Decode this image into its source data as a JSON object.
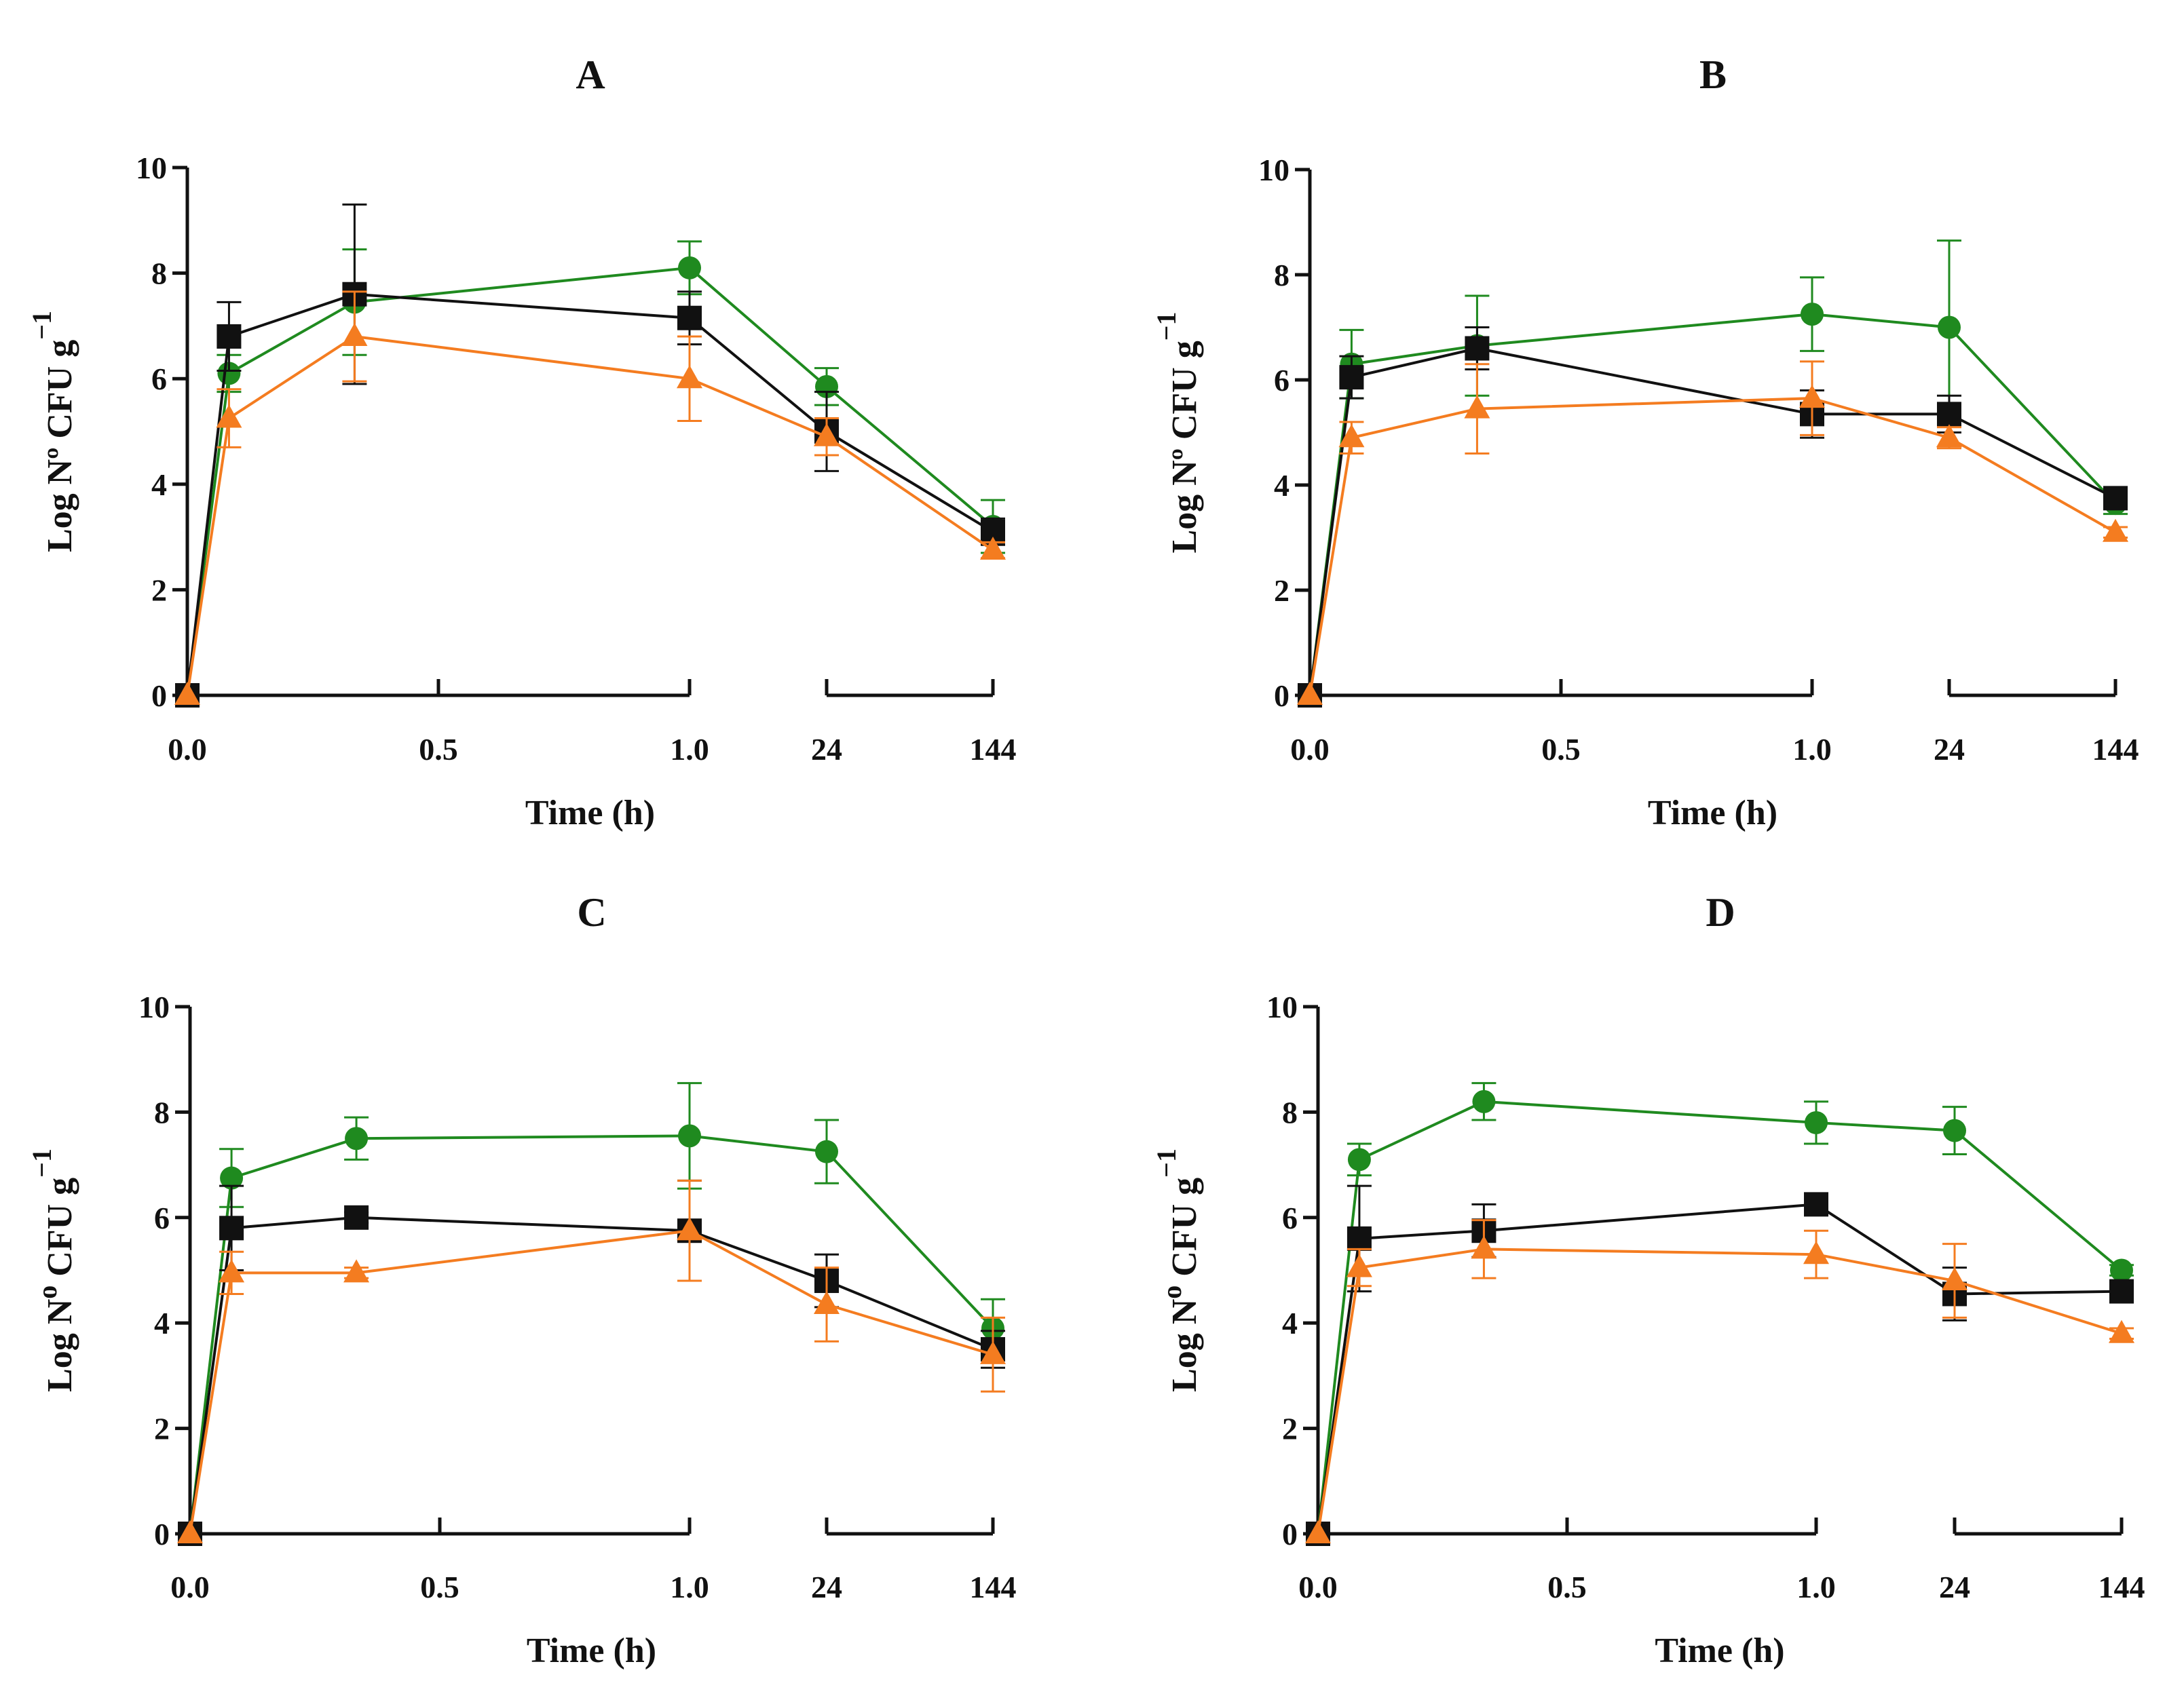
{
  "chart_data": [
    {
      "type": "line",
      "title": "A",
      "xlabel": "Time (h)",
      "ylabel": {
        "main": "Log Nº CFU g",
        "exponent": "−1"
      },
      "ylim": [
        0,
        10
      ],
      "yticks": [
        "0",
        "2",
        "4",
        "6",
        "8",
        "10"
      ],
      "x_segments": [
        {
          "range": [
            0.0,
            1.0
          ],
          "ticks": [
            "0.0",
            "0.5",
            "1.0"
          ]
        },
        {
          "range": [
            24,
            144
          ],
          "ticks": [
            "24",
            "144"
          ]
        }
      ],
      "x": [
        0,
        0.083,
        0.333,
        1.0,
        24,
        144
      ],
      "series": [
        {
          "name": "green circles",
          "marker": "circle",
          "color": "#1f8a1f",
          "values": [
            0,
            6.1,
            7.45,
            8.1,
            5.85,
            3.2
          ],
          "errors": [
            0,
            0.35,
            1.0,
            0.5,
            0.35,
            0.5
          ]
        },
        {
          "name": "black squares",
          "marker": "square",
          "color": "#111111",
          "values": [
            0,
            6.8,
            7.6,
            7.15,
            5.0,
            3.1
          ],
          "errors": [
            0,
            0.65,
            1.7,
            0.5,
            0.75,
            0.25
          ]
        },
        {
          "name": "orange triangles",
          "marker": "triangle",
          "color": "#f47c20",
          "values": [
            0,
            5.25,
            6.8,
            6.0,
            4.9,
            2.75
          ],
          "errors": [
            0,
            0.55,
            0.85,
            0.8,
            0.35,
            0.15
          ]
        }
      ]
    },
    {
      "type": "line",
      "title": "B",
      "xlabel": "Time (h)",
      "ylabel": {
        "main": "Log Nº CFU g",
        "exponent": "−1"
      },
      "ylim": [
        0,
        10
      ],
      "yticks": [
        "0",
        "2",
        "4",
        "6",
        "8",
        "10"
      ],
      "x_segments": [
        {
          "range": [
            0.0,
            1.0
          ],
          "ticks": [
            "0.0",
            "0.5",
            "1.0"
          ]
        },
        {
          "range": [
            24,
            144
          ],
          "ticks": [
            "24",
            "144"
          ]
        }
      ],
      "x": [
        0,
        0.083,
        0.333,
        1.0,
        24,
        144
      ],
      "series": [
        {
          "name": "green circles",
          "marker": "circle",
          "color": "#1f8a1f",
          "values": [
            0,
            6.3,
            6.65,
            7.25,
            7.0,
            3.65
          ],
          "errors": [
            0,
            0.65,
            0.95,
            0.7,
            1.65,
            0.2
          ]
        },
        {
          "name": "black squares",
          "marker": "square",
          "color": "#111111",
          "values": [
            0,
            6.05,
            6.6,
            5.35,
            5.35,
            3.75
          ],
          "errors": [
            0,
            0.4,
            0.4,
            0.45,
            0.35,
            0.1
          ]
        },
        {
          "name": "orange triangles",
          "marker": "triangle",
          "color": "#f47c20",
          "values": [
            0,
            4.9,
            5.45,
            5.65,
            4.9,
            3.1
          ],
          "errors": [
            0,
            0.3,
            0.85,
            0.7,
            0.2,
            0.1
          ]
        }
      ]
    },
    {
      "type": "line",
      "title": "C",
      "xlabel": "Time (h)",
      "ylabel": {
        "main": "Log N",
        "degree": "o",
        "rest": " CFU g",
        "exponent": "−1"
      },
      "ylim": [
        0,
        10
      ],
      "yticks": [
        "0",
        "2",
        "4",
        "6",
        "8",
        "10"
      ],
      "x_segments": [
        {
          "range": [
            0.0,
            1.0
          ],
          "ticks": [
            "0.0",
            "0.5",
            "1.0"
          ]
        },
        {
          "range": [
            24,
            144
          ],
          "ticks": [
            "24",
            "144"
          ]
        }
      ],
      "x": [
        0,
        0.083,
        0.333,
        1.0,
        24,
        144
      ],
      "series": [
        {
          "name": "green circles",
          "marker": "circle",
          "color": "#1f8a1f",
          "values": [
            0,
            6.75,
            7.5,
            7.55,
            7.25,
            3.9
          ],
          "errors": [
            0,
            0.55,
            0.4,
            1.0,
            0.6,
            0.55
          ]
        },
        {
          "name": "black squares",
          "marker": "square",
          "color": "#111111",
          "values": [
            0,
            5.8,
            6.0,
            5.75,
            4.8,
            3.5
          ],
          "errors": [
            0,
            0.8,
            0.1,
            0.95,
            0.5,
            0.35
          ]
        },
        {
          "name": "orange triangles",
          "marker": "triangle",
          "color": "#f47c20",
          "values": [
            0,
            4.95,
            4.95,
            5.75,
            4.35,
            3.4
          ],
          "errors": [
            0,
            0.4,
            0.1,
            0.95,
            0.7,
            0.7
          ]
        }
      ]
    },
    {
      "type": "line",
      "title": "D",
      "xlabel": "Time (h)",
      "ylabel": {
        "main": "Log N",
        "degree": "o",
        "rest": " CFU g",
        "exponent": "−1"
      },
      "ylim": [
        0,
        10
      ],
      "yticks": [
        "0",
        "2",
        "4",
        "6",
        "8",
        "10"
      ],
      "x_segments": [
        {
          "range": [
            0.0,
            1.0
          ],
          "ticks": [
            "0.0",
            "0.5",
            "1.0"
          ]
        },
        {
          "range": [
            24,
            144
          ],
          "ticks": [
            "24",
            "144"
          ]
        }
      ],
      "x": [
        0,
        0.083,
        0.333,
        1.0,
        24,
        144
      ],
      "series": [
        {
          "name": "green circles",
          "marker": "circle",
          "color": "#1f8a1f",
          "values": [
            0,
            7.1,
            8.2,
            7.8,
            7.65,
            5.0
          ],
          "errors": [
            0,
            0.3,
            0.35,
            0.4,
            0.45,
            0.1
          ]
        },
        {
          "name": "black squares",
          "marker": "square",
          "color": "#111111",
          "values": [
            0,
            5.6,
            5.75,
            6.25,
            4.55,
            4.6
          ],
          "errors": [
            0,
            1.0,
            0.5,
            0.1,
            0.5,
            0.1
          ]
        },
        {
          "name": "orange triangles",
          "marker": "triangle",
          "color": "#f47c20",
          "values": [
            0,
            5.05,
            5.4,
            5.3,
            4.8,
            3.8
          ],
          "errors": [
            0,
            0.35,
            0.55,
            0.45,
            0.7,
            0.1
          ]
        }
      ]
    }
  ]
}
